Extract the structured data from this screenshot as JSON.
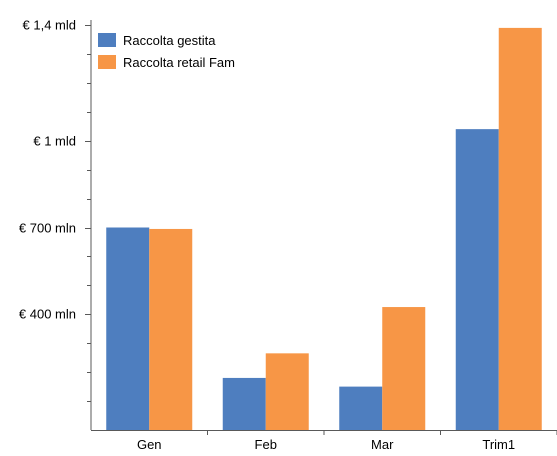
{
  "chart_data": {
    "type": "bar",
    "categories": [
      "Gen",
      "Feb",
      "Mar",
      "Trim1"
    ],
    "series": [
      {
        "name": "Raccolta gestita",
        "color": "#4E7EBF",
        "values": [
          700,
          180,
          150,
          1040
        ]
      },
      {
        "name": "Raccolta retail Fam",
        "color": "#F79646",
        "values": [
          695,
          265,
          425,
          1390
        ]
      }
    ],
    "y_ticks": [
      {
        "value": 400,
        "label": "€ 400 mln"
      },
      {
        "value": 700,
        "label": "€ 700 mln"
      },
      {
        "value": 1000,
        "label": "€ 1 mld"
      },
      {
        "value": 1400,
        "label": "€ 1,4 mld"
      }
    ],
    "ylim": [
      0,
      1400
    ],
    "grid": false,
    "legend_position": "top-left",
    "title": "",
    "xlabel": "",
    "ylabel": ""
  }
}
